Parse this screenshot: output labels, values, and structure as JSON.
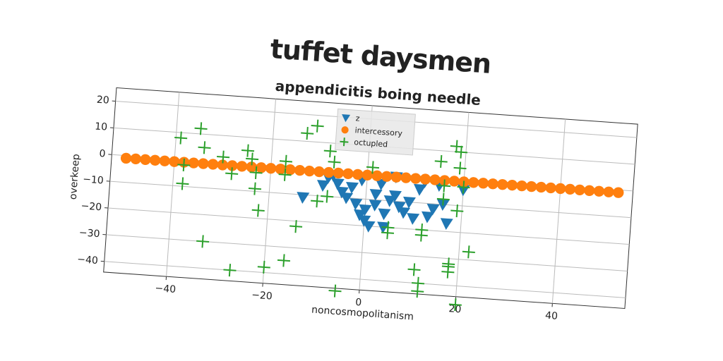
{
  "chart_data": {
    "type": "scatter",
    "title": "tuffet daysmen",
    "subtitle": "appendicitis boing needle",
    "x_label": "noncosmopolitanism",
    "y_label": "overkeep",
    "xlim": [
      -53,
      55
    ],
    "ylim": [
      -44,
      25
    ],
    "xticks": [
      {
        "value": -40,
        "label": "−40"
      },
      {
        "value": -20,
        "label": "−20"
      },
      0,
      20,
      40
    ],
    "yticks": [
      {
        "value": -40,
        "label": "−40"
      },
      {
        "value": -30,
        "label": "−30"
      },
      {
        "value": -20,
        "label": "−20"
      },
      {
        "value": -10,
        "label": "−10"
      },
      0,
      10,
      20
    ],
    "grid": true,
    "legend": "upper center",
    "series": [
      {
        "name": "z",
        "color": "#1f77b4",
        "marker": "triangle-down",
        "x": [
          -13,
          -9,
          -8,
          -7,
          -6,
          -5,
          -4,
          -3,
          -2,
          -1,
          0,
          0,
          1,
          2,
          2,
          3,
          4,
          4,
          5,
          6,
          7,
          8,
          9,
          10,
          11,
          12,
          13,
          14,
          15,
          16,
          17,
          20,
          -1,
          6
        ],
        "values": [
          -11,
          -6,
          -3,
          -2,
          -5,
          -8,
          -10,
          -6,
          -12,
          -16,
          -18,
          -14,
          -20,
          -8,
          -12,
          -4,
          -15,
          -20,
          -10,
          -8,
          -12,
          -14,
          -10,
          -16,
          -5,
          -2,
          -15,
          -12,
          -3,
          -10,
          -17,
          -4,
          -3,
          -1
        ]
      },
      {
        "name": "intercessory",
        "color": "#ff7f0e",
        "marker": "circle",
        "x": [
          -50,
          -48,
          -46,
          -44,
          -42,
          -40,
          -38,
          -36,
          -34,
          -32,
          -30,
          -28,
          -26,
          -24,
          -22,
          -20,
          -18,
          -16,
          -14,
          -12,
          -10,
          -8,
          -6,
          -4,
          -2,
          0,
          2,
          4,
          6,
          8,
          10,
          12,
          14,
          16,
          18,
          20,
          22,
          24,
          26,
          28,
          30,
          32,
          34,
          36,
          38,
          40,
          42,
          44,
          46,
          48,
          50,
          52
        ],
        "values": [
          -1,
          -1,
          -1,
          -1,
          -1,
          -1,
          -1,
          -1,
          -1,
          -1,
          -1,
          -1,
          -1,
          -1,
          -1,
          -1,
          -1,
          -1,
          -1,
          -1,
          -1,
          -1,
          -1,
          -1,
          -1,
          -1,
          -1,
          -1,
          -1,
          -1,
          -1,
          -1,
          -1,
          -1,
          -1,
          -1,
          -1,
          -1,
          -1,
          -1,
          -1,
          -1,
          -1,
          -1,
          -1,
          -1,
          -1,
          -1,
          -1,
          -1,
          -1,
          -1
        ]
      },
      {
        "name": "octupled",
        "color": "#2ca02c",
        "marker": "plus",
        "x": [
          -39,
          -35,
          -34,
          -38,
          -38,
          -30,
          -28,
          -25,
          -24,
          -23,
          -23,
          -22,
          -17,
          -17,
          -13,
          -11,
          -8,
          -7,
          -8,
          -10,
          -14,
          -33,
          -27,
          -20,
          -16,
          -5,
          5,
          12,
          12,
          11,
          12,
          12,
          15,
          16,
          16,
          18,
          19,
          19,
          20,
          19,
          18,
          18,
          18,
          22,
          20,
          1,
          5
        ],
        "values": [
          8,
          12,
          5,
          -2,
          -9,
          2,
          -4,
          5,
          2,
          -3,
          -9,
          -17,
          2,
          -3,
          13,
          16,
          7,
          3,
          -10,
          -12,
          -22,
          -30,
          -40,
          -38,
          -35,
          -45,
          -22,
          -20,
          -22,
          -35,
          -40,
          -43,
          6,
          -3,
          -8,
          12,
          10,
          4,
          -3,
          -12,
          -32,
          -33,
          -35,
          -27,
          -47,
          2,
          -20
        ]
      }
    ]
  }
}
